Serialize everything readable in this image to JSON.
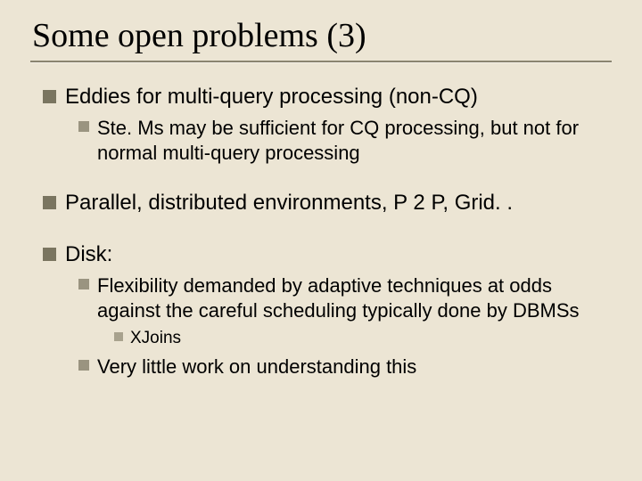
{
  "background_color": "#ece5d4",
  "divider_color": "#8a8470",
  "bullet_colors": {
    "l1": "#7a7560",
    "l2": "#9a9480",
    "l3": "#a8a28e"
  },
  "title": {
    "text": "Some open problems (3)",
    "font_family": "Times New Roman",
    "font_size_pt": 38
  },
  "body_font": {
    "family": "Arial",
    "l1_size_pt": 24,
    "l2_size_pt": 22,
    "l3_size_pt": 19
  },
  "items": {
    "b1": "Eddies for multi-query processing (non-CQ)",
    "b1_1": "Ste. Ms may be sufficient for CQ processing, but not for normal multi-query processing",
    "b2": "Parallel, distributed environments, P 2 P, Grid. .",
    "b3": "Disk:",
    "b3_1": "Flexibility demanded by adaptive techniques at odds against the careful scheduling typically done by DBMSs",
    "b3_1_1": "XJoins",
    "b3_2": "Very little work on understanding this"
  }
}
